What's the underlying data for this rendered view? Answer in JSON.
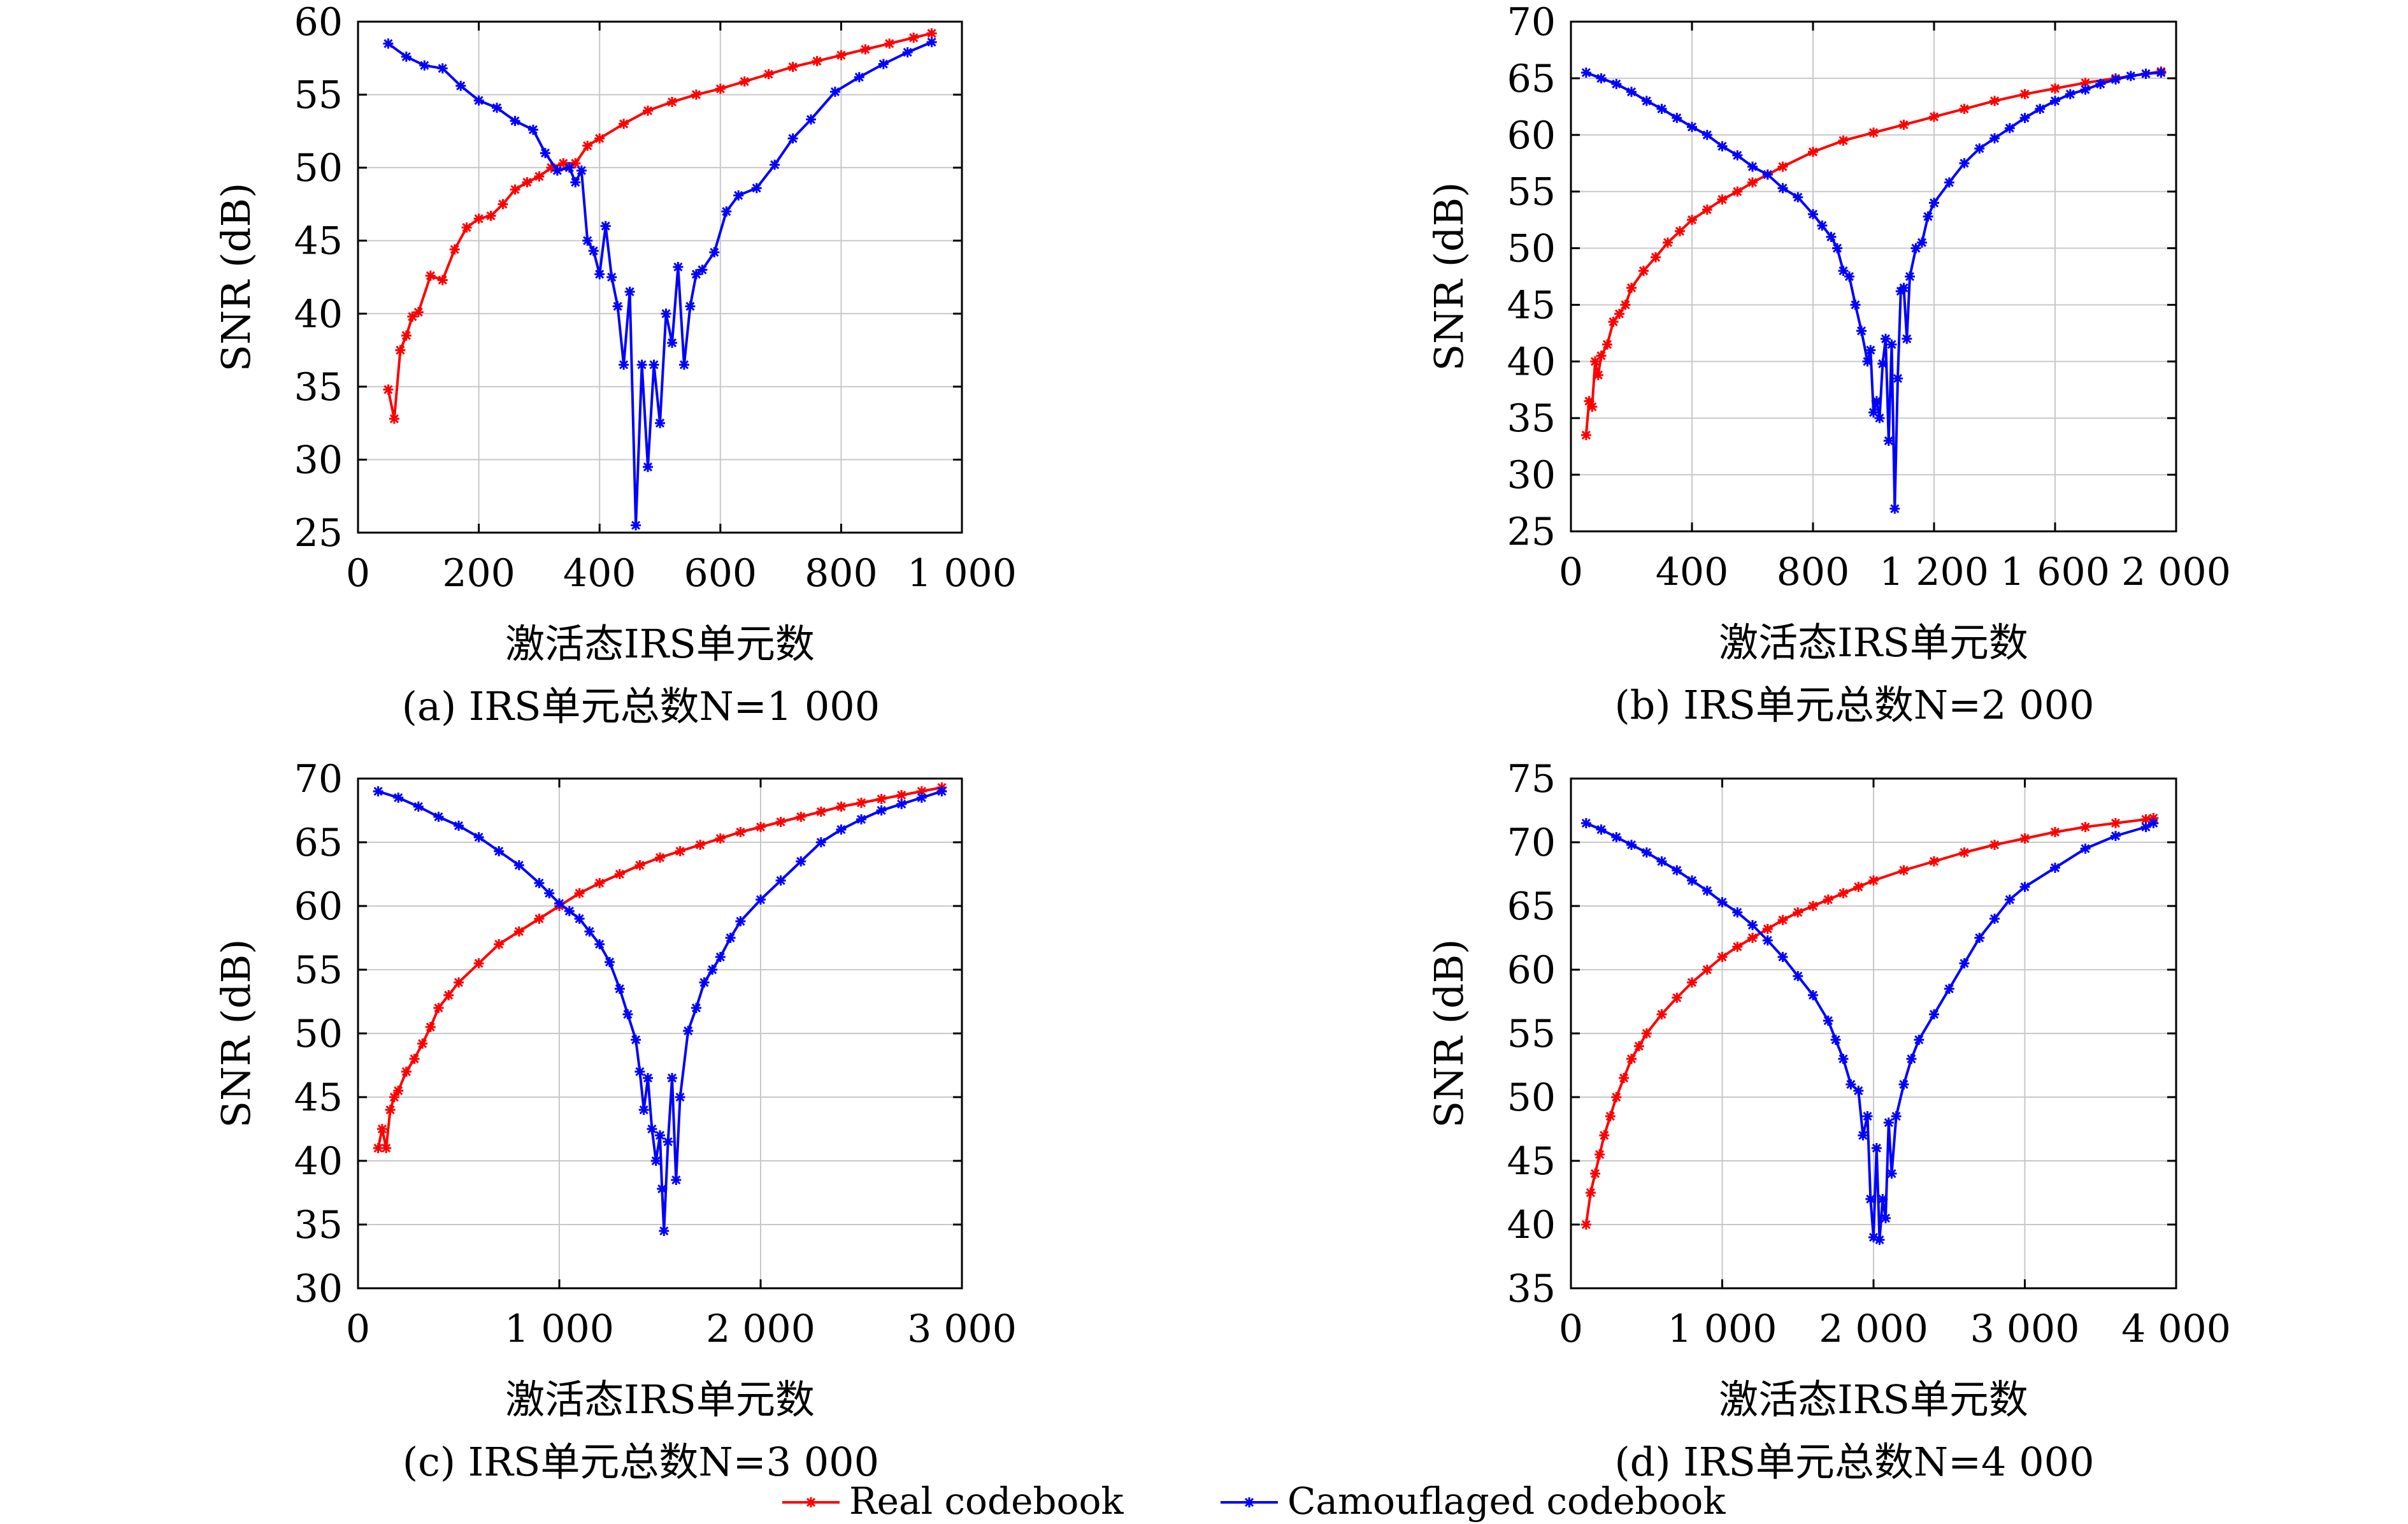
{
  "legend": {
    "real_label": "Real codebook",
    "camo_label": "Camouflaged codebook",
    "real_color": "#ff0000",
    "camo_color": "#0000ff"
  },
  "chart_data": [
    {
      "type": "line",
      "caption": "(a) IRS单元总数N=1 000",
      "xlabel": "激活态IRS单元数",
      "ylabel": "SNR (dB)",
      "xlim": [
        0,
        1000
      ],
      "ylim": [
        25,
        60
      ],
      "xticks": [
        0,
        200,
        400,
        600,
        800,
        1000
      ],
      "xtick_labels": [
        "0",
        "200",
        "400",
        "600",
        "800",
        "1 000"
      ],
      "yticks": [
        25,
        30,
        35,
        40,
        45,
        50,
        55,
        60
      ],
      "grid": true,
      "series": [
        {
          "name": "Real codebook",
          "color": "#ff0000",
          "x": [
            50,
            60,
            70,
            80,
            90,
            100,
            120,
            140,
            160,
            180,
            200,
            220,
            240,
            260,
            280,
            300,
            320,
            340,
            360,
            380,
            400,
            440,
            480,
            520,
            560,
            600,
            640,
            680,
            720,
            760,
            800,
            840,
            880,
            920,
            950
          ],
          "y": [
            34.8,
            32.8,
            37.5,
            38.5,
            39.8,
            40.1,
            42.6,
            42.3,
            44.4,
            45.9,
            46.5,
            46.7,
            47.5,
            48.5,
            49.0,
            49.4,
            50.0,
            50.3,
            50.3,
            51.5,
            52.0,
            53.0,
            53.9,
            54.5,
            55.0,
            55.4,
            55.9,
            56.4,
            56.9,
            57.3,
            57.7,
            58.1,
            58.5,
            58.9,
            59.2
          ]
        },
        {
          "name": "Camouflaged codebook",
          "color": "#0000ff",
          "x": [
            50,
            80,
            110,
            140,
            170,
            200,
            230,
            260,
            290,
            310,
            330,
            350,
            360,
            370,
            380,
            390,
            400,
            410,
            420,
            430,
            440,
            450,
            460,
            470,
            480,
            490,
            500,
            510,
            520,
            530,
            540,
            550,
            560,
            570,
            590,
            610,
            630,
            660,
            690,
            720,
            750,
            790,
            830,
            870,
            910,
            950
          ],
          "y": [
            58.5,
            57.6,
            57.0,
            56.8,
            55.6,
            54.6,
            54.1,
            53.2,
            52.6,
            51.0,
            49.8,
            50.0,
            49.0,
            49.8,
            45.0,
            44.3,
            42.7,
            46.0,
            42.5,
            40.5,
            36.5,
            41.5,
            25.5,
            36.5,
            29.5,
            36.5,
            32.5,
            40.0,
            38.0,
            43.2,
            36.5,
            40.5,
            42.7,
            43.0,
            44.2,
            47.0,
            48.1,
            48.6,
            50.2,
            52.0,
            53.3,
            55.2,
            56.2,
            57.1,
            57.9,
            58.6
          ]
        }
      ]
    },
    {
      "type": "line",
      "caption": "(b) IRS单元总数N=2 000",
      "xlabel": "激活态IRS单元数",
      "ylabel": "SNR (dB)",
      "xlim": [
        0,
        2000
      ],
      "ylim": [
        25,
        70
      ],
      "xticks": [
        0,
        400,
        800,
        1200,
        1600,
        2000
      ],
      "xtick_labels": [
        "0",
        "400",
        "800",
        "1 200",
        "1 600",
        "2 000"
      ],
      "yticks": [
        25,
        30,
        35,
        40,
        45,
        50,
        55,
        60,
        65,
        70
      ],
      "grid": true,
      "series": [
        {
          "name": "Real codebook",
          "color": "#ff0000",
          "x": [
            50,
            60,
            70,
            80,
            90,
            100,
            120,
            140,
            160,
            180,
            200,
            240,
            280,
            320,
            360,
            400,
            450,
            500,
            550,
            600,
            650,
            700,
            800,
            900,
            1000,
            1100,
            1200,
            1300,
            1400,
            1500,
            1600,
            1700,
            1800,
            1900,
            1950
          ],
          "y": [
            33.5,
            36.5,
            36.0,
            40.0,
            38.8,
            40.5,
            41.5,
            43.5,
            44.2,
            45.0,
            46.5,
            48.0,
            49.2,
            50.5,
            51.5,
            52.5,
            53.4,
            54.3,
            55.0,
            55.8,
            56.5,
            57.2,
            58.5,
            59.5,
            60.2,
            60.9,
            61.6,
            62.3,
            63.0,
            63.6,
            64.1,
            64.6,
            65.0,
            65.4,
            65.6
          ]
        },
        {
          "name": "Camouflaged codebook",
          "color": "#0000ff",
          "x": [
            50,
            100,
            150,
            200,
            250,
            300,
            350,
            400,
            450,
            500,
            550,
            600,
            650,
            700,
            750,
            800,
            830,
            860,
            880,
            900,
            920,
            940,
            960,
            980,
            990,
            1000,
            1010,
            1020,
            1030,
            1040,
            1050,
            1060,
            1070,
            1080,
            1090,
            1100,
            1110,
            1120,
            1140,
            1160,
            1180,
            1200,
            1250,
            1300,
            1350,
            1400,
            1450,
            1500,
            1550,
            1600,
            1650,
            1700,
            1750,
            1800,
            1850,
            1900,
            1950
          ],
          "y": [
            65.5,
            65.0,
            64.5,
            63.8,
            63.0,
            62.3,
            61.5,
            60.7,
            60.0,
            59.0,
            58.2,
            57.2,
            56.5,
            55.3,
            54.5,
            53.0,
            52.0,
            51.0,
            50.0,
            48.0,
            47.5,
            45.0,
            42.7,
            40.0,
            41.0,
            35.5,
            36.5,
            35.0,
            39.8,
            42.0,
            33.0,
            41.5,
            27.0,
            38.5,
            46.2,
            46.5,
            42.0,
            47.5,
            50.0,
            50.5,
            52.8,
            54.0,
            55.8,
            57.5,
            58.8,
            59.7,
            60.6,
            61.5,
            62.3,
            63.0,
            63.6,
            64.0,
            64.5,
            64.9,
            65.2,
            65.4,
            65.5
          ]
        }
      ]
    },
    {
      "type": "line",
      "caption": "(c) IRS单元总数N=3 000",
      "xlabel": "激活态IRS单元数",
      "ylabel": "SNR (dB)",
      "xlim": [
        0,
        3000
      ],
      "ylim": [
        30,
        70
      ],
      "xticks": [
        0,
        1000,
        2000,
        3000
      ],
      "xtick_labels": [
        "0",
        "1 000",
        "2 000",
        "3 000"
      ],
      "yticks": [
        30,
        35,
        40,
        45,
        50,
        55,
        60,
        65,
        70
      ],
      "grid": true,
      "series": [
        {
          "name": "Real codebook",
          "color": "#ff0000",
          "x": [
            100,
            120,
            140,
            160,
            180,
            200,
            240,
            280,
            320,
            360,
            400,
            450,
            500,
            600,
            700,
            800,
            900,
            1000,
            1100,
            1200,
            1300,
            1400,
            1500,
            1600,
            1700,
            1800,
            1900,
            2000,
            2100,
            2200,
            2300,
            2400,
            2500,
            2600,
            2700,
            2800,
            2900
          ],
          "y": [
            41.0,
            42.5,
            41.0,
            44.0,
            45.0,
            45.5,
            47.0,
            48.0,
            49.2,
            50.5,
            52.0,
            53.0,
            54.0,
            55.5,
            57.0,
            58.0,
            59.0,
            60.0,
            61.0,
            61.8,
            62.5,
            63.2,
            63.8,
            64.3,
            64.8,
            65.3,
            65.8,
            66.2,
            66.6,
            67.0,
            67.4,
            67.8,
            68.1,
            68.4,
            68.7,
            69.0,
            69.3
          ]
        },
        {
          "name": "Camouflaged codebook",
          "color": "#0000ff",
          "x": [
            100,
            200,
            300,
            400,
            500,
            600,
            700,
            800,
            900,
            950,
            1000,
            1050,
            1100,
            1150,
            1200,
            1250,
            1300,
            1340,
            1380,
            1400,
            1420,
            1440,
            1460,
            1480,
            1500,
            1510,
            1520,
            1540,
            1560,
            1580,
            1600,
            1640,
            1680,
            1720,
            1760,
            1800,
            1850,
            1900,
            2000,
            2100,
            2200,
            2300,
            2400,
            2500,
            2600,
            2700,
            2800,
            2900
          ],
          "y": [
            69.0,
            68.5,
            67.8,
            67.0,
            66.3,
            65.4,
            64.3,
            63.2,
            61.8,
            61.0,
            60.2,
            59.6,
            59.0,
            58.0,
            57.0,
            55.6,
            53.5,
            51.5,
            49.5,
            47.0,
            44.0,
            46.5,
            42.5,
            40.0,
            42.0,
            37.8,
            34.5,
            41.5,
            46.5,
            38.5,
            45.0,
            50.2,
            52.0,
            54.0,
            55.0,
            56.0,
            57.5,
            58.8,
            60.5,
            62.0,
            63.5,
            65.0,
            66.0,
            66.8,
            67.5,
            68.0,
            68.5,
            69.0
          ]
        }
      ]
    },
    {
      "type": "line",
      "caption": "(d) IRS单元总数N=4 000",
      "xlabel": "激活态IRS单元数",
      "ylabel": "SNR (dB)",
      "xlim": [
        0,
        4000
      ],
      "ylim": [
        35,
        75
      ],
      "xticks": [
        0,
        1000,
        2000,
        3000,
        4000
      ],
      "xtick_labels": [
        "0",
        "1 000",
        "2 000",
        "3 000",
        "4 000"
      ],
      "yticks": [
        35,
        40,
        45,
        50,
        55,
        60,
        65,
        70,
        75
      ],
      "grid": true,
      "series": [
        {
          "name": "Real codebook",
          "color": "#ff0000",
          "x": [
            100,
            130,
            160,
            190,
            220,
            260,
            300,
            350,
            400,
            450,
            500,
            600,
            700,
            800,
            900,
            1000,
            1100,
            1200,
            1300,
            1400,
            1500,
            1600,
            1700,
            1800,
            1900,
            2000,
            2200,
            2400,
            2600,
            2800,
            3000,
            3200,
            3400,
            3600,
            3800,
            3850
          ],
          "y": [
            40.0,
            42.5,
            44.0,
            45.5,
            47.0,
            48.5,
            50.0,
            51.5,
            53.0,
            54.0,
            55.0,
            56.5,
            57.8,
            59.0,
            60.0,
            61.0,
            61.8,
            62.5,
            63.2,
            63.9,
            64.5,
            65.0,
            65.5,
            66.0,
            66.5,
            67.0,
            67.8,
            68.5,
            69.2,
            69.8,
            70.3,
            70.8,
            71.2,
            71.5,
            71.8,
            71.9
          ]
        },
        {
          "name": "Camouflaged codebook",
          "color": "#0000ff",
          "x": [
            100,
            200,
            300,
            400,
            500,
            600,
            700,
            800,
            900,
            1000,
            1100,
            1200,
            1300,
            1400,
            1500,
            1600,
            1700,
            1750,
            1800,
            1850,
            1900,
            1930,
            1960,
            1980,
            2000,
            2020,
            2040,
            2060,
            2080,
            2100,
            2120,
            2150,
            2200,
            2250,
            2300,
            2400,
            2500,
            2600,
            2700,
            2800,
            2900,
            3000,
            3200,
            3400,
            3600,
            3800,
            3850
          ],
          "y": [
            71.5,
            71.0,
            70.4,
            69.8,
            69.2,
            68.5,
            67.8,
            67.0,
            66.2,
            65.3,
            64.5,
            63.5,
            62.3,
            61.0,
            59.5,
            58.0,
            56.0,
            54.5,
            53.0,
            51.0,
            50.5,
            47.0,
            48.5,
            42.0,
            39.0,
            46.0,
            38.8,
            42.0,
            40.5,
            48.0,
            44.0,
            48.5,
            51.0,
            53.0,
            54.5,
            56.5,
            58.5,
            60.5,
            62.5,
            64.0,
            65.5,
            66.5,
            68.0,
            69.5,
            70.5,
            71.2,
            71.5
          ]
        }
      ]
    }
  ]
}
